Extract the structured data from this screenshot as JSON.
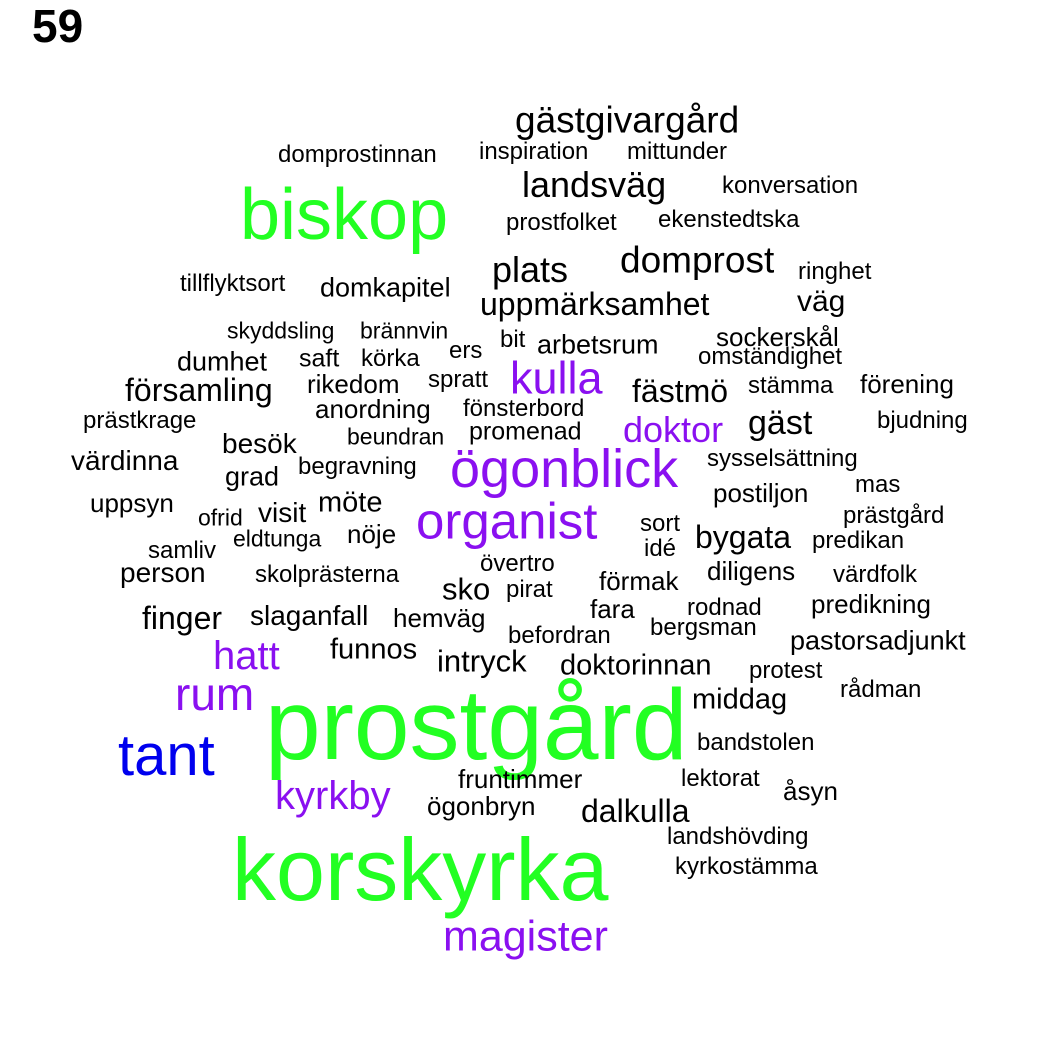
{
  "label": "59",
  "colors": {
    "tier1": "#22ff22",
    "tier2": "#0000ee",
    "tier3": "#8a10f0",
    "tier4": "#000000"
  },
  "words": [
    {
      "text": "gästgivargård",
      "tier": 4
    },
    {
      "text": "domprostinnan",
      "tier": 4
    },
    {
      "text": "inspiration",
      "tier": 4
    },
    {
      "text": "mittunder",
      "tier": 4
    },
    {
      "text": "biskop",
      "tier": 1
    },
    {
      "text": "landsväg",
      "tier": 4
    },
    {
      "text": "konversation",
      "tier": 4
    },
    {
      "text": "prostfolket",
      "tier": 4
    },
    {
      "text": "ekenstedtska",
      "tier": 4
    },
    {
      "text": "domprost",
      "tier": 4
    },
    {
      "text": "plats",
      "tier": 4
    },
    {
      "text": "ringhet",
      "tier": 4
    },
    {
      "text": "tillflyktsort",
      "tier": 4
    },
    {
      "text": "domkapitel",
      "tier": 4
    },
    {
      "text": "uppmärksamhet",
      "tier": 4
    },
    {
      "text": "väg",
      "tier": 4
    },
    {
      "text": "skyddsling",
      "tier": 4
    },
    {
      "text": "brännvin",
      "tier": 4
    },
    {
      "text": "bit",
      "tier": 4
    },
    {
      "text": "arbetsrum",
      "tier": 4
    },
    {
      "text": "sockerskål",
      "tier": 4
    },
    {
      "text": "dumhet",
      "tier": 4
    },
    {
      "text": "saft",
      "tier": 4
    },
    {
      "text": "körka",
      "tier": 4
    },
    {
      "text": "ers",
      "tier": 4
    },
    {
      "text": "omständighet",
      "tier": 4
    },
    {
      "text": "kulla",
      "tier": 3
    },
    {
      "text": "församling",
      "tier": 4
    },
    {
      "text": "rikedom",
      "tier": 4
    },
    {
      "text": "spratt",
      "tier": 4
    },
    {
      "text": "fästmö",
      "tier": 4
    },
    {
      "text": "stämma",
      "tier": 4
    },
    {
      "text": "förening",
      "tier": 4
    },
    {
      "text": "anordning",
      "tier": 4
    },
    {
      "text": "fönsterbord",
      "tier": 4
    },
    {
      "text": "prästkrage",
      "tier": 4
    },
    {
      "text": "doktor",
      "tier": 3
    },
    {
      "text": "gäst",
      "tier": 4
    },
    {
      "text": "bjudning",
      "tier": 4
    },
    {
      "text": "beundran",
      "tier": 4
    },
    {
      "text": "promenad",
      "tier": 4
    },
    {
      "text": "besök",
      "tier": 4
    },
    {
      "text": "ögonblick",
      "tier": 3
    },
    {
      "text": "värdinna",
      "tier": 4
    },
    {
      "text": "sysselsättning",
      "tier": 4
    },
    {
      "text": "grad",
      "tier": 4
    },
    {
      "text": "begravning",
      "tier": 4
    },
    {
      "text": "postiljon",
      "tier": 4
    },
    {
      "text": "mas",
      "tier": 4
    },
    {
      "text": "uppsyn",
      "tier": 4
    },
    {
      "text": "möte",
      "tier": 4
    },
    {
      "text": "prästgård",
      "tier": 4
    },
    {
      "text": "visit",
      "tier": 4
    },
    {
      "text": "ofrid",
      "tier": 4
    },
    {
      "text": "organist",
      "tier": 3
    },
    {
      "text": "sort",
      "tier": 4
    },
    {
      "text": "nöje",
      "tier": 4
    },
    {
      "text": "eldtunga",
      "tier": 4
    },
    {
      "text": "bygata",
      "tier": 4
    },
    {
      "text": "predikan",
      "tier": 4
    },
    {
      "text": "samliv",
      "tier": 4
    },
    {
      "text": "idé",
      "tier": 4
    },
    {
      "text": "övertro",
      "tier": 4
    },
    {
      "text": "person",
      "tier": 4
    },
    {
      "text": "skolprästerna",
      "tier": 4
    },
    {
      "text": "diligens",
      "tier": 4
    },
    {
      "text": "värdfolk",
      "tier": 4
    },
    {
      "text": "sko",
      "tier": 4
    },
    {
      "text": "pirat",
      "tier": 4
    },
    {
      "text": "förmak",
      "tier": 4
    },
    {
      "text": "predikning",
      "tier": 4
    },
    {
      "text": "finger",
      "tier": 4
    },
    {
      "text": "slaganfall",
      "tier": 4
    },
    {
      "text": "hemväg",
      "tier": 4
    },
    {
      "text": "fara",
      "tier": 4
    },
    {
      "text": "rodnad",
      "tier": 4
    },
    {
      "text": "befordran",
      "tier": 4
    },
    {
      "text": "bergsman",
      "tier": 4
    },
    {
      "text": "pastorsadjunkt",
      "tier": 4
    },
    {
      "text": "hatt",
      "tier": 3
    },
    {
      "text": "funnos",
      "tier": 4
    },
    {
      "text": "intryck",
      "tier": 4
    },
    {
      "text": "doktorinnan",
      "tier": 4
    },
    {
      "text": "protest",
      "tier": 4
    },
    {
      "text": "rum",
      "tier": 3
    },
    {
      "text": "rådman",
      "tier": 4
    },
    {
      "text": "middag",
      "tier": 4
    },
    {
      "text": "prostgård",
      "tier": 1
    },
    {
      "text": "tant",
      "tier": 2
    },
    {
      "text": "bandstolen",
      "tier": 4
    },
    {
      "text": "fruntimmer",
      "tier": 4
    },
    {
      "text": "lektorat",
      "tier": 4
    },
    {
      "text": "åsyn",
      "tier": 4
    },
    {
      "text": "kyrkby",
      "tier": 3
    },
    {
      "text": "ögonbryn",
      "tier": 4
    },
    {
      "text": "dalkulla",
      "tier": 4
    },
    {
      "text": "landshövding",
      "tier": 4
    },
    {
      "text": "korskyrka",
      "tier": 1
    },
    {
      "text": "kyrkostämma",
      "tier": 4
    },
    {
      "text": "magister",
      "tier": 3
    }
  ]
}
